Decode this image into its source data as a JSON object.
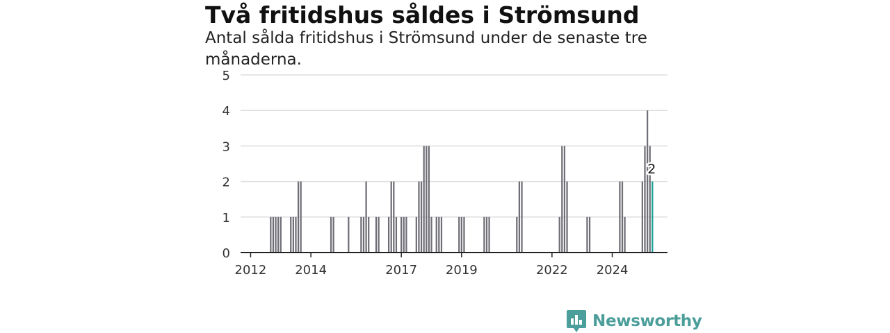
{
  "title": "Två fritidshus såldes i Strömsund",
  "subtitle": "Antal sålda fritidshus i Strömsund under de senaste tre månaderna.",
  "logo": {
    "text": "Newsworthy",
    "icon": "newsworthy-logo-icon"
  },
  "colors": {
    "bar": "#6e6e76",
    "highlight": "#1a9e96",
    "grid": "#dddddd",
    "axis": "#222222",
    "brand": "#4b9e9a"
  },
  "chart_data": {
    "type": "bar",
    "ylim": [
      0,
      5
    ],
    "yticks": [
      0,
      1,
      2,
      3,
      4,
      5
    ],
    "xlim": [
      "2011-09",
      "2025-11"
    ],
    "xticks": [
      "2012",
      "2014",
      "2017",
      "2019",
      "2022",
      "2024"
    ],
    "grid": true,
    "annotation": {
      "date": "2025-05",
      "label": "2"
    },
    "series": [
      {
        "values": [
          {
            "date": "2012-09",
            "value": 1
          },
          {
            "date": "2012-10",
            "value": 1
          },
          {
            "date": "2012-11",
            "value": 1
          },
          {
            "date": "2012-12",
            "value": 1
          },
          {
            "date": "2013-01",
            "value": 1
          },
          {
            "date": "2013-05",
            "value": 1
          },
          {
            "date": "2013-06",
            "value": 1
          },
          {
            "date": "2013-07",
            "value": 1
          },
          {
            "date": "2013-08",
            "value": 2
          },
          {
            "date": "2013-09",
            "value": 2
          },
          {
            "date": "2014-09",
            "value": 1
          },
          {
            "date": "2014-10",
            "value": 1
          },
          {
            "date": "2015-04",
            "value": 1
          },
          {
            "date": "2015-09",
            "value": 1
          },
          {
            "date": "2015-10",
            "value": 1
          },
          {
            "date": "2015-11",
            "value": 2
          },
          {
            "date": "2015-12",
            "value": 1
          },
          {
            "date": "2016-03",
            "value": 1
          },
          {
            "date": "2016-04",
            "value": 1
          },
          {
            "date": "2016-08",
            "value": 1
          },
          {
            "date": "2016-09",
            "value": 2
          },
          {
            "date": "2016-10",
            "value": 2
          },
          {
            "date": "2016-11",
            "value": 1
          },
          {
            "date": "2017-01",
            "value": 1
          },
          {
            "date": "2017-02",
            "value": 1
          },
          {
            "date": "2017-03",
            "value": 1
          },
          {
            "date": "2017-07",
            "value": 1
          },
          {
            "date": "2017-08",
            "value": 2
          },
          {
            "date": "2017-09",
            "value": 2
          },
          {
            "date": "2017-10",
            "value": 3
          },
          {
            "date": "2017-11",
            "value": 3
          },
          {
            "date": "2017-12",
            "value": 3
          },
          {
            "date": "2018-01",
            "value": 1
          },
          {
            "date": "2018-03",
            "value": 1
          },
          {
            "date": "2018-04",
            "value": 1
          },
          {
            "date": "2018-05",
            "value": 1
          },
          {
            "date": "2018-12",
            "value": 1
          },
          {
            "date": "2019-01",
            "value": 1
          },
          {
            "date": "2019-02",
            "value": 1
          },
          {
            "date": "2019-10",
            "value": 1
          },
          {
            "date": "2019-11",
            "value": 1
          },
          {
            "date": "2019-12",
            "value": 1
          },
          {
            "date": "2020-11",
            "value": 1
          },
          {
            "date": "2020-12",
            "value": 2
          },
          {
            "date": "2021-01",
            "value": 2
          },
          {
            "date": "2022-04",
            "value": 1
          },
          {
            "date": "2022-05",
            "value": 3
          },
          {
            "date": "2022-06",
            "value": 3
          },
          {
            "date": "2022-07",
            "value": 2
          },
          {
            "date": "2023-03",
            "value": 1
          },
          {
            "date": "2023-04",
            "value": 1
          },
          {
            "date": "2024-04",
            "value": 2
          },
          {
            "date": "2024-05",
            "value": 2
          },
          {
            "date": "2024-06",
            "value": 1
          },
          {
            "date": "2025-01",
            "value": 2
          },
          {
            "date": "2025-02",
            "value": 3
          },
          {
            "date": "2025-03",
            "value": 4
          },
          {
            "date": "2025-04",
            "value": 3
          },
          {
            "date": "2025-05",
            "value": 2,
            "highlight": true
          }
        ]
      }
    ]
  }
}
